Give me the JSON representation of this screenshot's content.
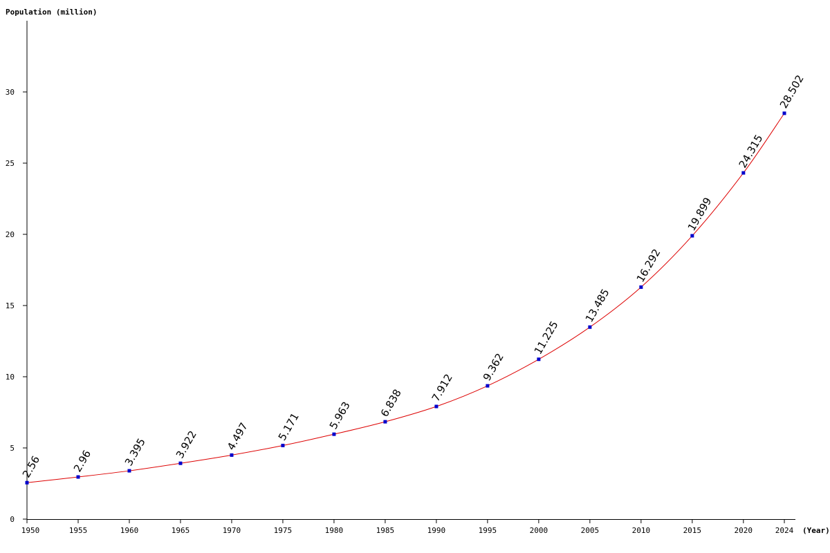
{
  "chart_data": {
    "type": "line",
    "title": "",
    "xlabel": "(Year)",
    "ylabel": "Population (million)",
    "x": [
      1950,
      1955,
      1960,
      1965,
      1970,
      1975,
      1980,
      1985,
      1990,
      1995,
      2000,
      2005,
      2010,
      2015,
      2020,
      2024
    ],
    "x_tick_labels": [
      "1950",
      "1955",
      "1960",
      "1965",
      "1970",
      "1975",
      "1980",
      "1985",
      "1990",
      "1995",
      "2000",
      "2005",
      "2010",
      "2015",
      "2020",
      "2024"
    ],
    "y_ticks": [
      0,
      5,
      10,
      15,
      20,
      25,
      30
    ],
    "y_tick_labels": [
      "0",
      "5",
      "10",
      "15",
      "20",
      "25",
      "30"
    ],
    "ylim": [
      0,
      35
    ],
    "series": [
      {
        "values": [
          2.56,
          2.96,
          3.395,
          3.922,
          4.497,
          5.171,
          5.963,
          6.838,
          7.912,
          9.362,
          11.225,
          13.485,
          16.292,
          19.899,
          24.315,
          28.502
        ],
        "labels": [
          "2.56",
          "2.96",
          "3.395",
          "3.922",
          "4.497",
          "5.171",
          "5.963",
          "6.838",
          "7.912",
          "9.362",
          "11.225",
          "13.485",
          "16.292",
          "19.899",
          "24.315",
          "28.502"
        ],
        "line_color": "#dd0000",
        "marker_color": "#0000cc"
      }
    ],
    "grid": false,
    "legend": "none"
  }
}
